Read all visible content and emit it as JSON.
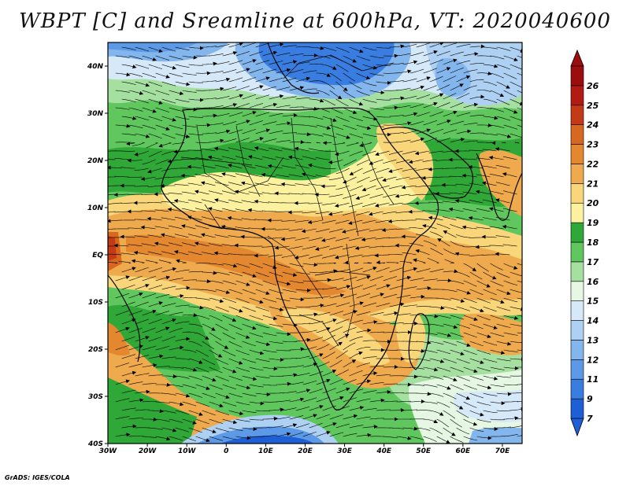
{
  "title": "WBPT [C] and Sreamline at 600hPa, VT: 2020040600",
  "credit": "GrADS: IGES/COLA",
  "map": {
    "lon_range": [
      -30,
      75
    ],
    "lat_range": [
      -40,
      45
    ],
    "lat_ticks": [
      {
        "value": 40,
        "label": "40N"
      },
      {
        "value": 30,
        "label": "30N"
      },
      {
        "value": 20,
        "label": "20N"
      },
      {
        "value": 10,
        "label": "10N"
      },
      {
        "value": 0,
        "label": "EQ"
      },
      {
        "value": -10,
        "label": "10S"
      },
      {
        "value": -20,
        "label": "20S"
      },
      {
        "value": -30,
        "label": "30S"
      },
      {
        "value": -40,
        "label": "40S"
      }
    ],
    "lon_ticks": [
      {
        "value": -30,
        "label": "30W"
      },
      {
        "value": -20,
        "label": "20W"
      },
      {
        "value": -10,
        "label": "10W"
      },
      {
        "value": 0,
        "label": "0"
      },
      {
        "value": 10,
        "label": "10E"
      },
      {
        "value": 20,
        "label": "20E"
      },
      {
        "value": 30,
        "label": "30E"
      },
      {
        "value": 40,
        "label": "40E"
      },
      {
        "value": 50,
        "label": "50E"
      },
      {
        "value": 60,
        "label": "60E"
      },
      {
        "value": 70,
        "label": "70E"
      }
    ],
    "shading_colors": {
      "lt9": "#1e5fd6",
      "9_11": "#3a7de0",
      "11_12": "#5c9ae8",
      "12_13": "#84b6ee",
      "13_14": "#aed0f3",
      "14_15": "#d6e9f8",
      "15_16": "#e6f8e4",
      "16_17": "#a6e0a0",
      "17_18": "#5fc75d",
      "18_19": "#2fa838",
      "19_20": "#fbf19e",
      "20_21": "#f9d67a",
      "21_22": "#efaa4d",
      "22_23": "#e48830",
      "23_24": "#d8681f",
      "24_25": "#c53a16",
      "25_26": "#b31b12",
      "gt26": "#9c0d0d"
    }
  },
  "colorbar": {
    "labels": [
      "7",
      "9",
      "11",
      "12",
      "13",
      "14",
      "15",
      "16",
      "17",
      "18",
      "19",
      "20",
      "21",
      "22",
      "23",
      "24",
      "25",
      "26"
    ],
    "colors": [
      "#1e5fd6",
      "#3a7de0",
      "#5c9ae8",
      "#84b6ee",
      "#aed0f3",
      "#d6e9f8",
      "#e6f8e4",
      "#a6e0a0",
      "#5fc75d",
      "#2fa838",
      "#fbf19e",
      "#f9d67a",
      "#efaa4d",
      "#e48830",
      "#d8681f",
      "#c53a16",
      "#b31b12",
      "#9c0d0d"
    ]
  }
}
